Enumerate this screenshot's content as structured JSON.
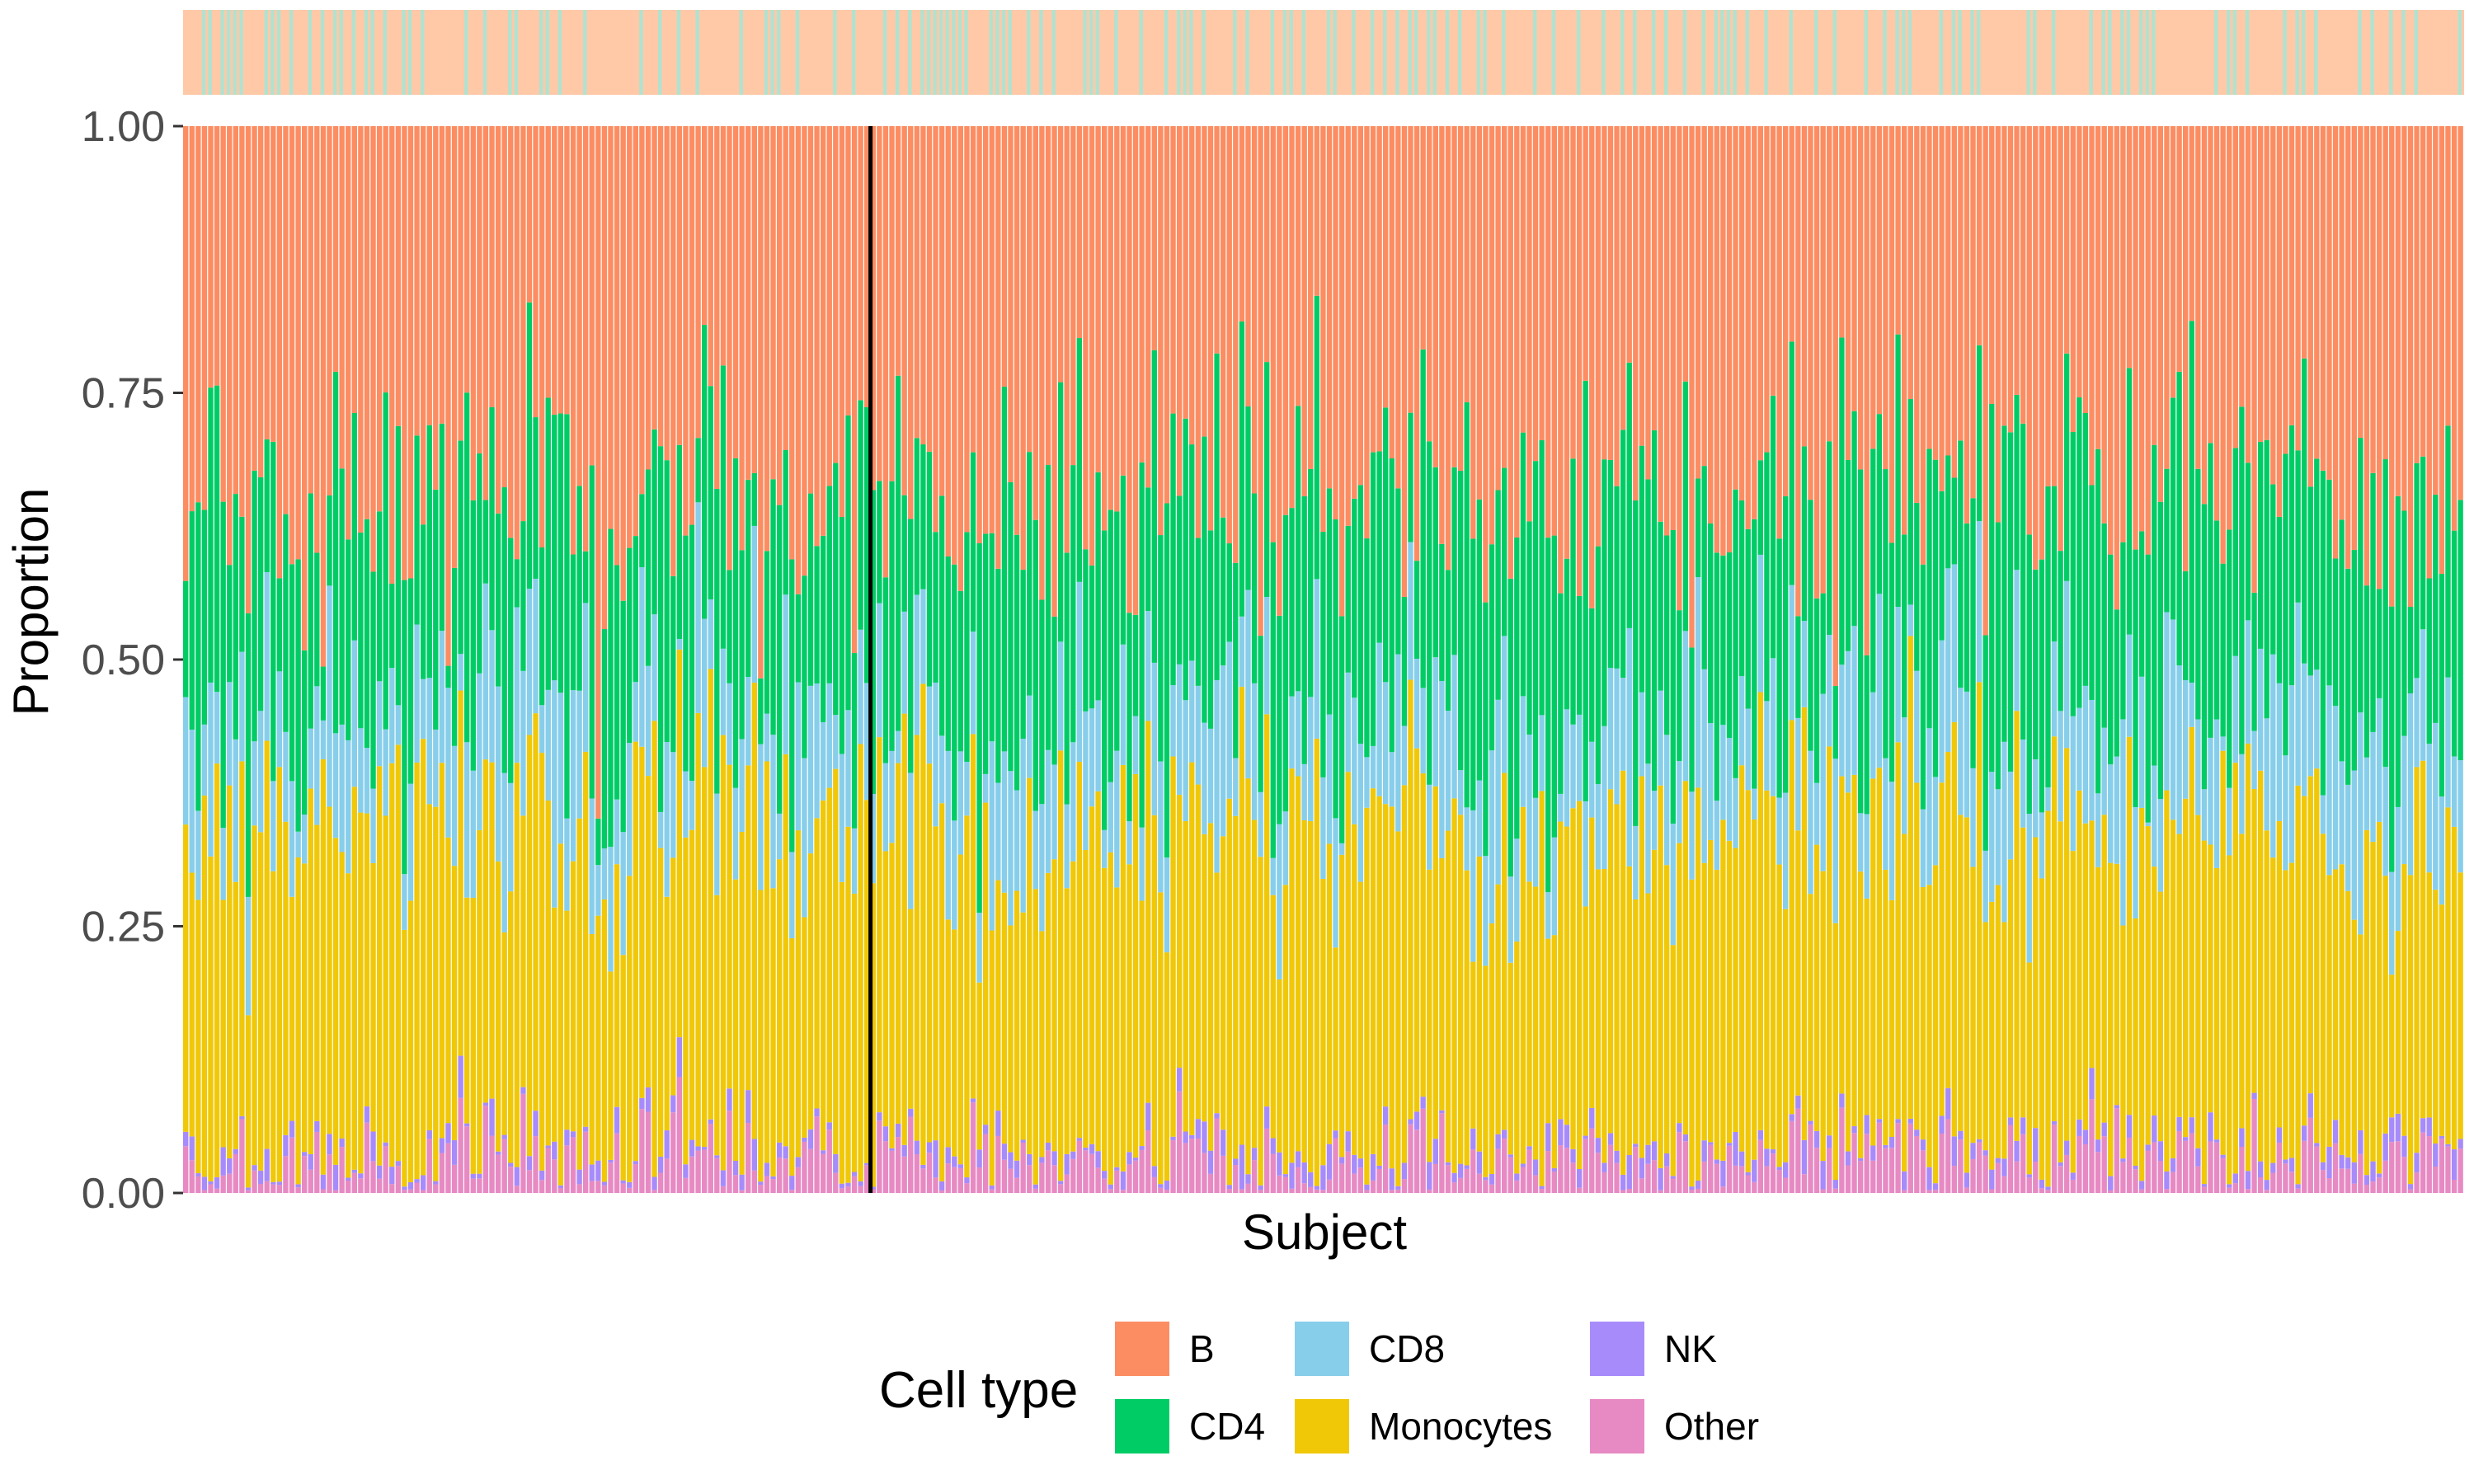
{
  "chart_data": {
    "type": "bar",
    "stacked": true,
    "n_subjects": 365,
    "divider_after_subject": 110,
    "title": "",
    "xlabel": "Subject",
    "ylabel": "Proportion",
    "ylim": [
      0,
      1
    ],
    "y_ticks": [
      "0.00",
      "0.25",
      "0.50",
      "0.75",
      "1.00"
    ],
    "grid": false,
    "legend": {
      "title": "Cell type",
      "position": "bottom",
      "entries": [
        {
          "name": "B",
          "color": "#FC8D62"
        },
        {
          "name": "CD4",
          "color": "#00CC66"
        },
        {
          "name": "CD8",
          "color": "#87CEEB"
        },
        {
          "name": "Monocytes",
          "color": "#F0C808"
        },
        {
          "name": "NK",
          "color": "#A78BFA"
        },
        {
          "name": "Other",
          "color": "#E78AC3"
        }
      ]
    },
    "stack_order_bottom_to_top": [
      "Other",
      "NK",
      "Monocytes",
      "CD8",
      "CD4",
      "B"
    ],
    "typical_proportions": {
      "Other": 0.03,
      "NK": 0.01,
      "Monocytes": 0.3,
      "CD8": 0.1,
      "CD4": 0.22,
      "B": 0.34
    },
    "top_annotation_colors": {
      "group_a": "#FFC9A8",
      "group_b": "#B2E2CF"
    }
  }
}
